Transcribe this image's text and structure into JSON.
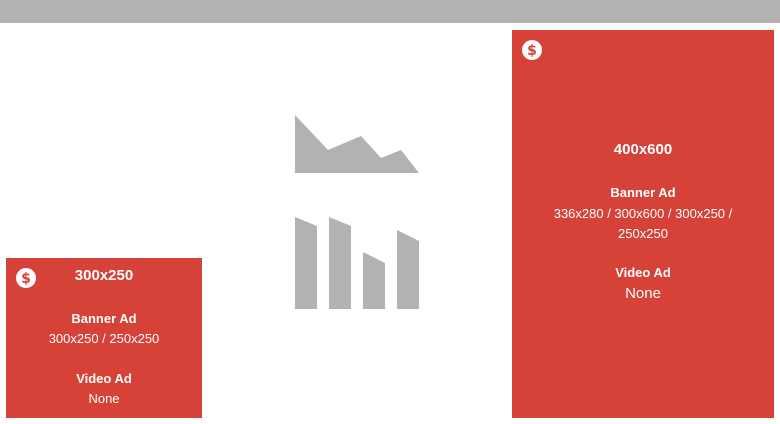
{
  "ads": [
    {
      "size": "300x250",
      "banner_label": "Banner Ad",
      "banner_sizes": "300x250 / 250x250",
      "video_label": "Video Ad",
      "video_value": "None",
      "icon": "dollar-coin-icon"
    },
    {
      "size": "400x600",
      "banner_label": "Banner Ad",
      "banner_sizes": "336x280 / 300x600 / 300x250 / 250x250",
      "video_label": "Video Ad",
      "video_value": "None",
      "icon": "dollar-coin-icon"
    }
  ],
  "colors": {
    "ad_background": "#d64138",
    "placeholder_gray": "#b2b2b2",
    "top_bar": "#b2b2b2"
  },
  "center_icons": [
    "area-chart-icon",
    "bar-chart-icon"
  ]
}
